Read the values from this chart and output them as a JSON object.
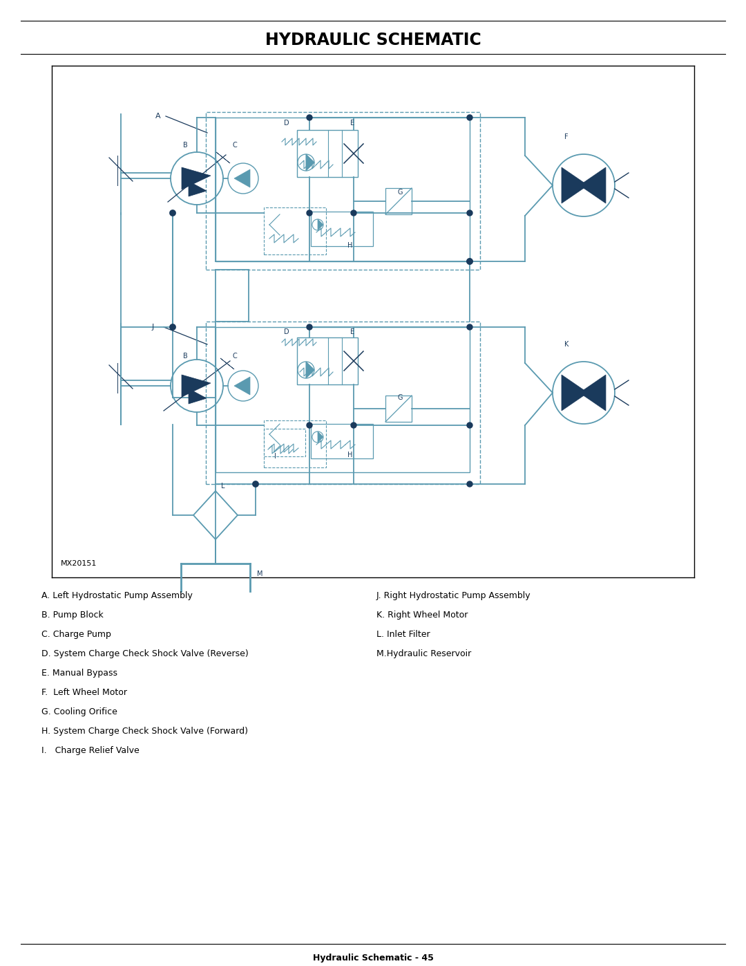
{
  "title": "HYDRAULIC SCHEMATIC",
  "footer": "Hydraulic Schematic - 45",
  "diagram_label": "MX20151",
  "bg_color": "#ffffff",
  "line_color": "#5a9ab0",
  "dark_color": "#1a3a5c",
  "legend_left": [
    "A. Left Hydrostatic Pump Assembly",
    "B. Pump Block",
    "C. Charge Pump",
    "D. System Charge Check Shock Valve (Reverse)",
    "E. Manual Bypass",
    "F.  Left Wheel Motor",
    "G. Cooling Orifice",
    "H. System Charge Check Shock Valve (Forward)",
    "I.   Charge Relief Valve"
  ],
  "legend_right": [
    "J. Right Hydrostatic Pump Assembly",
    "K. Right Wheel Motor",
    "L. Inlet Filter",
    "M.Hydraulic Reservoir"
  ]
}
